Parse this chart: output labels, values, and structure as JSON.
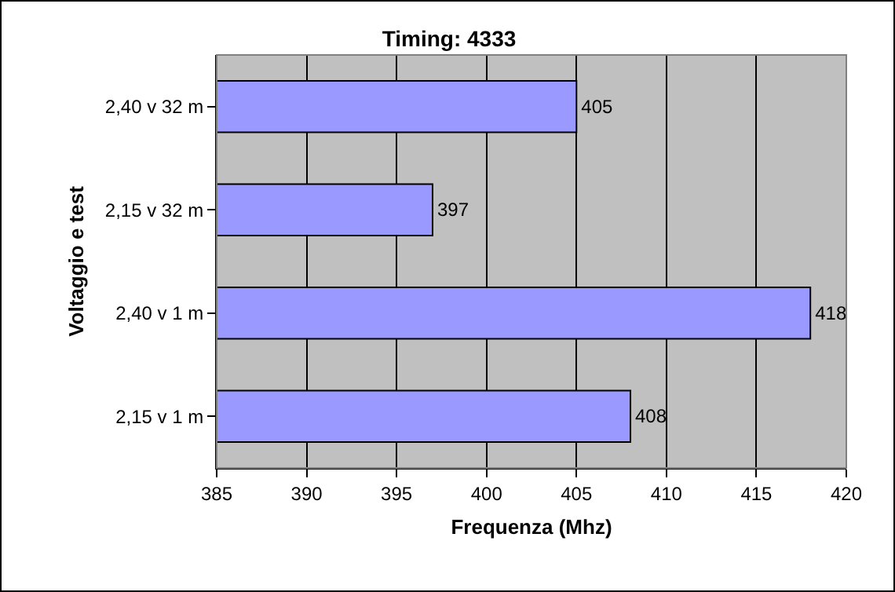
{
  "chart_data": {
    "type": "bar",
    "orientation": "horizontal",
    "title": "Timing: 4333",
    "xlabel": "Frequenza (Mhz)",
    "ylabel": "Voltaggio e test",
    "categories": [
      "2,40 v 32 m",
      "2,15 v 32 m",
      "2,40 v 1 m",
      "2,15 v 1 m"
    ],
    "values": [
      405,
      397,
      418,
      408
    ],
    "color": "#9999ff",
    "data_labels": true,
    "xlim": [
      385,
      420
    ],
    "xticks": [
      385,
      390,
      395,
      400,
      405,
      410,
      415,
      420
    ],
    "grid": "x"
  }
}
